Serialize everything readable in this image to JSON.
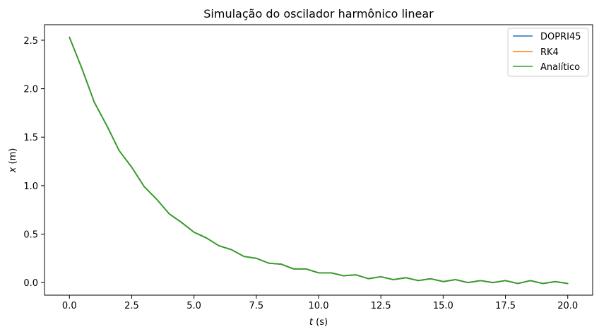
{
  "chart_data": {
    "type": "line",
    "title": "Simulação do oscilador harmônico linear",
    "xlabel": "t (s)",
    "xlabel_var": "t",
    "xlabel_unit": " (s)",
    "ylabel": "x (m)",
    "ylabel_var": "x",
    "ylabel_unit": " (m)",
    "xlim": [
      -1.0,
      21.0
    ],
    "ylim": [
      -0.13,
      2.66
    ],
    "xticks": [
      0.0,
      2.5,
      5.0,
      7.5,
      10.0,
      12.5,
      15.0,
      17.5,
      20.0
    ],
    "xtick_labels": [
      "0.0",
      "2.5",
      "5.0",
      "7.5",
      "10.0",
      "12.5",
      "15.0",
      "17.5",
      "20.0"
    ],
    "yticks": [
      0.0,
      0.5,
      1.0,
      1.5,
      2.0,
      2.5
    ],
    "ytick_labels": [
      "0.0",
      "0.5",
      "1.0",
      "1.5",
      "2.0",
      "2.5"
    ],
    "grid": false,
    "legend_position": "top-right",
    "x": [
      0,
      0.5,
      1.0,
      1.5,
      2.0,
      2.5,
      3.0,
      3.5,
      4.0,
      4.5,
      5.0,
      5.5,
      6.0,
      6.5,
      7.0,
      7.5,
      8.0,
      8.5,
      9.0,
      9.5,
      10.0,
      10.5,
      11.0,
      11.5,
      12.0,
      12.5,
      13.0,
      13.5,
      14.0,
      14.5,
      15.0,
      15.5,
      16.0,
      16.5,
      17.0,
      17.5,
      18.0,
      18.5,
      19.0,
      19.5,
      20.0
    ],
    "series": [
      {
        "name": "DOPRI45",
        "color": "#1f77b4",
        "values": [
          2.53,
          2.21,
          1.86,
          1.62,
          1.36,
          1.19,
          0.99,
          0.86,
          0.71,
          0.62,
          0.52,
          0.46,
          0.38,
          0.34,
          0.27,
          0.25,
          0.2,
          0.19,
          0.14,
          0.14,
          0.1,
          0.1,
          0.07,
          0.08,
          0.04,
          0.06,
          0.03,
          0.05,
          0.02,
          0.04,
          0.01,
          0.03,
          0.0,
          0.02,
          0.0,
          0.02,
          -0.01,
          0.02,
          -0.01,
          0.01,
          -0.01
        ]
      },
      {
        "name": "RK4",
        "color": "#ff7f0e",
        "values": [
          2.53,
          2.21,
          1.86,
          1.62,
          1.36,
          1.19,
          0.99,
          0.86,
          0.71,
          0.62,
          0.52,
          0.46,
          0.38,
          0.34,
          0.27,
          0.25,
          0.2,
          0.19,
          0.14,
          0.14,
          0.1,
          0.1,
          0.07,
          0.08,
          0.04,
          0.06,
          0.03,
          0.05,
          0.02,
          0.04,
          0.01,
          0.03,
          0.0,
          0.02,
          0.0,
          0.02,
          -0.01,
          0.02,
          -0.01,
          0.01,
          -0.01
        ]
      },
      {
        "name": "Analítico",
        "color": "#2ca02c",
        "values": [
          2.53,
          2.21,
          1.86,
          1.62,
          1.36,
          1.19,
          0.99,
          0.86,
          0.71,
          0.62,
          0.52,
          0.46,
          0.38,
          0.34,
          0.27,
          0.25,
          0.2,
          0.19,
          0.14,
          0.14,
          0.1,
          0.1,
          0.07,
          0.08,
          0.04,
          0.06,
          0.03,
          0.05,
          0.02,
          0.04,
          0.01,
          0.03,
          0.0,
          0.02,
          0.0,
          0.02,
          -0.01,
          0.02,
          -0.01,
          0.01,
          -0.01
        ]
      }
    ]
  }
}
